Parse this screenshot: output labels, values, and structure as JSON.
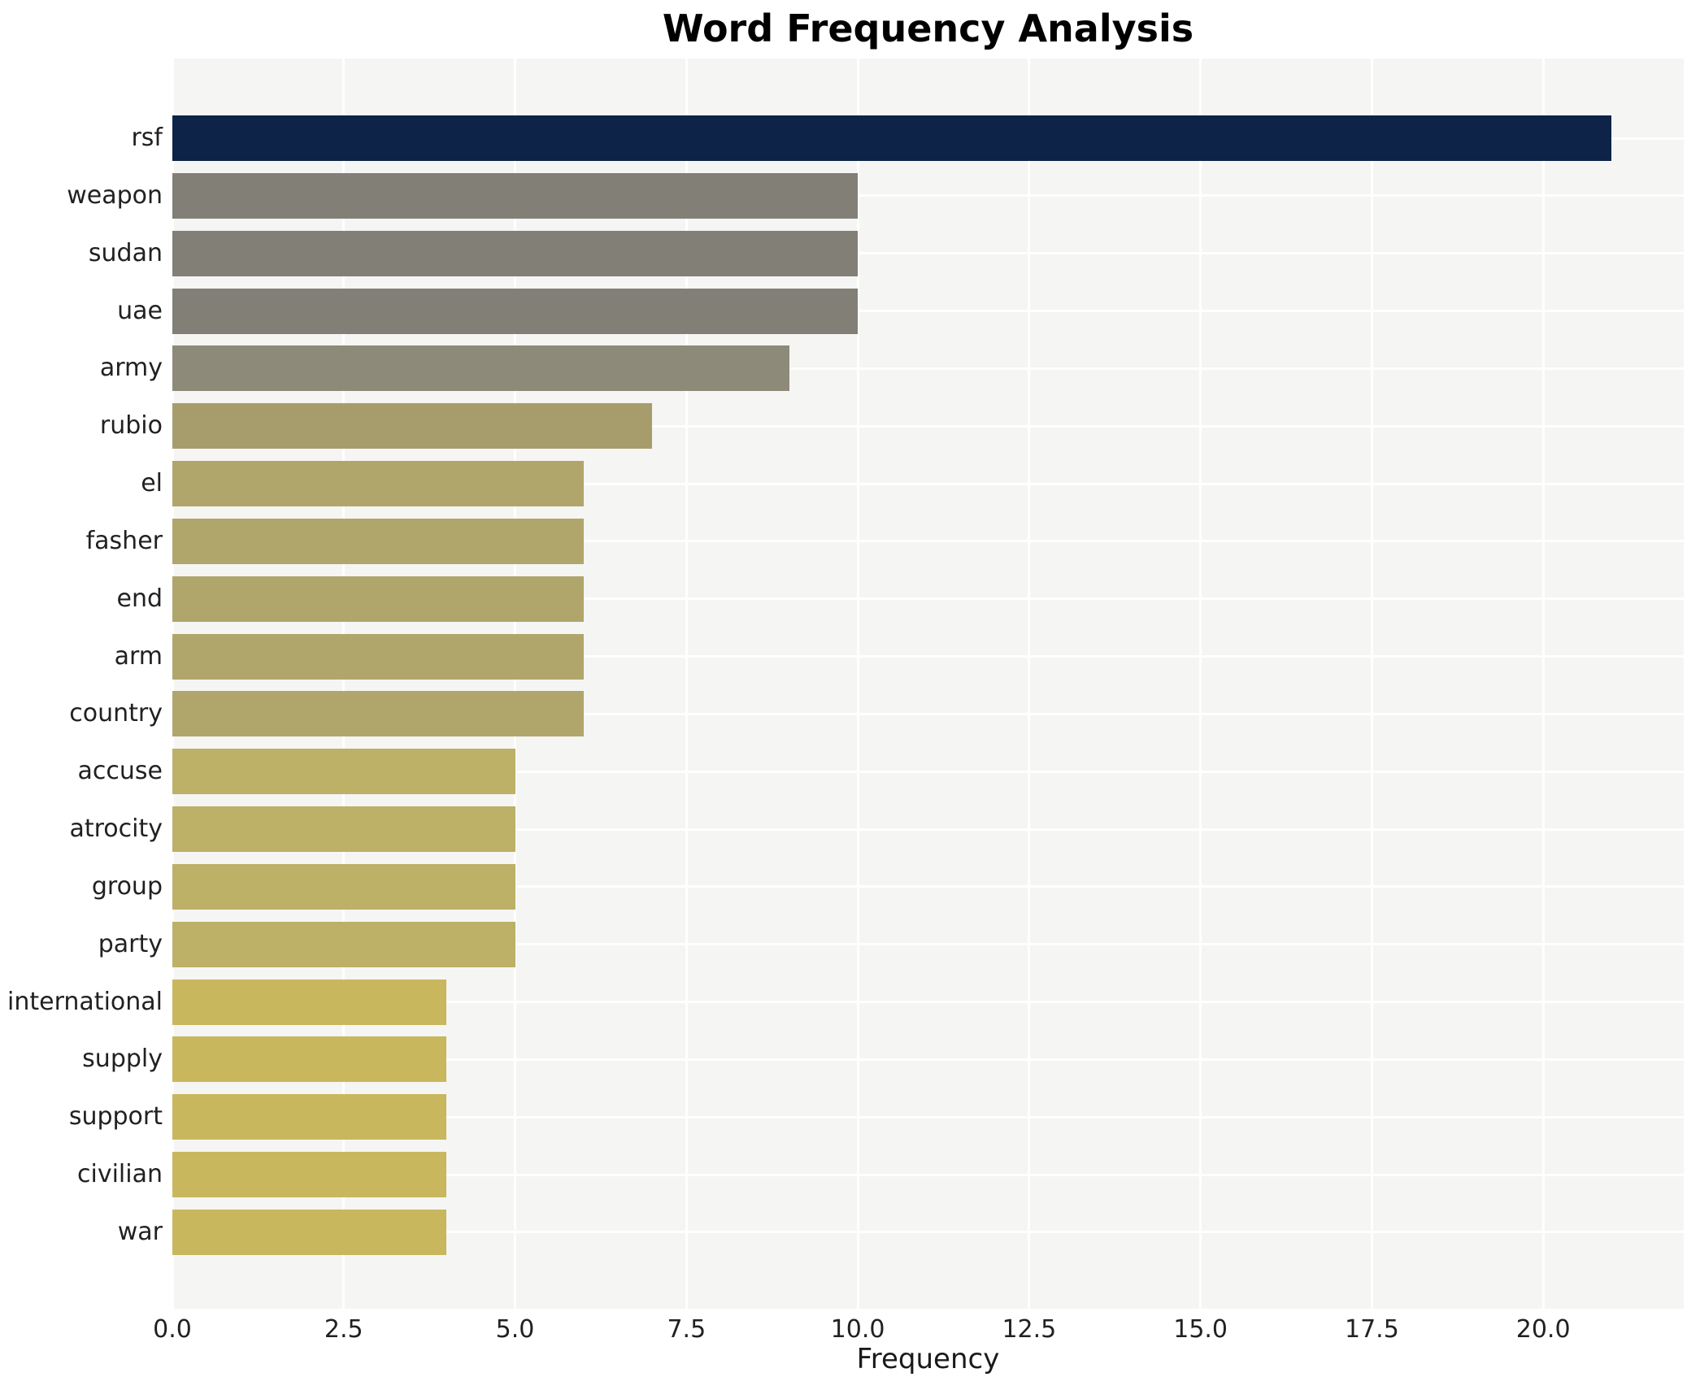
{
  "chart_data": {
    "type": "bar",
    "orientation": "horizontal",
    "title": "Word Frequency Analysis",
    "xlabel": "Frequency",
    "ylabel": "",
    "categories": [
      "rsf",
      "weapon",
      "sudan",
      "uae",
      "army",
      "rubio",
      "el",
      "fasher",
      "end",
      "arm",
      "country",
      "accuse",
      "atrocity",
      "group",
      "party",
      "international",
      "supply",
      "support",
      "civilian",
      "war"
    ],
    "values": [
      21,
      10,
      10,
      10,
      9,
      7,
      6,
      6,
      6,
      6,
      6,
      5,
      5,
      5,
      5,
      4,
      4,
      4,
      4,
      4
    ],
    "bar_colors": [
      "#0d2347",
      "#827f77",
      "#827f77",
      "#827f77",
      "#8e8a79",
      "#a79d6c",
      "#b0a66b",
      "#b0a66b",
      "#b0a66b",
      "#b0a66b",
      "#b0a66b",
      "#bdb067",
      "#bdb067",
      "#bdb067",
      "#bdb067",
      "#c9b75e",
      "#c9b75e",
      "#c9b75e",
      "#c9b75e",
      "#c9b75e"
    ],
    "xlim": [
      0.0,
      22.05
    ],
    "xticks": [
      0.0,
      2.5,
      5.0,
      7.5,
      10.0,
      12.5,
      15.0,
      17.5,
      20.0
    ],
    "xtick_labels": [
      "0.0",
      "2.5",
      "5.0",
      "7.5",
      "10.0",
      "12.5",
      "15.0",
      "17.5",
      "20.0"
    ],
    "grid": true,
    "legend": false,
    "plot_background": "#f5f5f3",
    "grid_color": "#ffffff",
    "figure_background": "#ffffff"
  }
}
